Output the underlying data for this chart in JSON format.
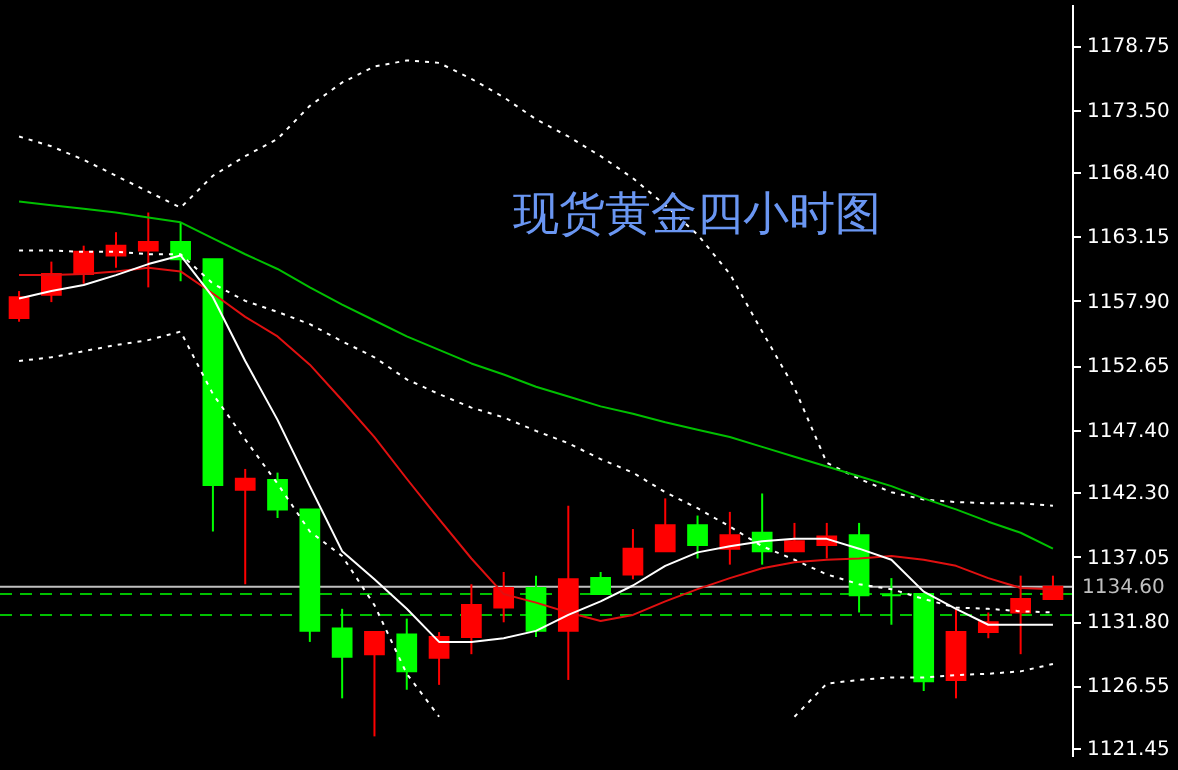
{
  "chart_data": {
    "type": "candlestick",
    "annotations": [
      "现货黄金四小时图"
    ],
    "categories": [
      null,
      null,
      null,
      null,
      null,
      null,
      null,
      null,
      null,
      null,
      null,
      null,
      null,
      null,
      null,
      null,
      null,
      null,
      null,
      null,
      null,
      null,
      null,
      null,
      null,
      null,
      null,
      null,
      null,
      null,
      null,
      null,
      null
    ],
    "ohlc": [
      [
        1156.5,
        1158.7,
        1156.2,
        1158.2
      ],
      [
        1158.4,
        1161.1,
        1157.8,
        1160.1
      ],
      [
        1160.1,
        1162.4,
        1159.3,
        1161.9
      ],
      [
        1161.6,
        1163.5,
        1160.6,
        1162.4
      ],
      [
        1162.0,
        1165.1,
        1159.0,
        1162.7
      ],
      [
        1162.7,
        1164.3,
        1159.5,
        1161.3
      ],
      [
        1161.3,
        1161.3,
        1139.1,
        1142.9
      ],
      [
        1142.5,
        1144.2,
        1134.8,
        1143.4
      ],
      [
        1143.3,
        1143.9,
        1140.2,
        1140.9
      ],
      [
        1140.9,
        1140.9,
        1130.1,
        1131.0
      ],
      [
        1131.2,
        1132.8,
        1125.5,
        1128.9
      ],
      [
        1129.1,
        1130.9,
        1122.4,
        1130.9
      ],
      [
        1130.7,
        1132.0,
        1126.2,
        1127.7
      ],
      [
        1128.8,
        1130.9,
        1126.6,
        1130.5
      ],
      [
        1130.5,
        1134.8,
        1129.1,
        1133.1
      ],
      [
        1132.9,
        1135.8,
        1131.7,
        1134.5
      ],
      [
        1134.5,
        1135.5,
        1130.5,
        1131.0
      ],
      [
        1131.0,
        1141.2,
        1127.0,
        1135.2
      ],
      [
        1135.3,
        1135.8,
        1134.0,
        1134.0
      ],
      [
        1135.6,
        1139.3,
        1135.2,
        1137.7
      ],
      [
        1137.5,
        1141.8,
        1137.5,
        1139.6
      ],
      [
        1139.6,
        1140.4,
        1136.9,
        1138.0
      ],
      [
        1137.7,
        1140.7,
        1136.4,
        1138.8
      ],
      [
        1139.0,
        1142.2,
        1136.4,
        1137.5
      ],
      [
        1137.5,
        1139.8,
        1137.5,
        1138.3
      ],
      [
        1138.0,
        1139.8,
        1136.9,
        1138.7
      ],
      [
        1138.8,
        1139.8,
        1132.5,
        1133.9
      ],
      [
        1133.9,
        1135.3,
        1131.5,
        1133.9
      ],
      [
        1134.0,
        1134.0,
        1126.1,
        1126.9
      ],
      [
        1127.0,
        1132.8,
        1125.5,
        1130.9
      ],
      [
        1130.9,
        1132.5,
        1130.4,
        1131.7
      ],
      [
        1132.5,
        1135.5,
        1129.1,
        1133.6
      ],
      [
        1133.6,
        1135.5,
        1133.6,
        1134.6
      ]
    ],
    "colors": [
      "#ff0000",
      "#ff0000",
      "#ff0000",
      "#ff0000",
      "#ff0000",
      "#00ff00",
      "#00ff00",
      "#ff0000",
      "#00ff00",
      "#00ff00",
      "#00ff00",
      "#ff0000",
      "#00ff00",
      "#ff0000",
      "#ff0000",
      "#ff0000",
      "#00ff00",
      "#ff0000",
      "#00ff00",
      "#ff0000",
      "#ff0000",
      "#00ff00",
      "#ff0000",
      "#00ff00",
      "#ff0000",
      "#ff0000",
      "#00ff00",
      "#00ff00",
      "#00ff00",
      "#ff0000",
      "#ff0000",
      "#ff0000",
      "#ff0000"
    ],
    "series": [
      {
        "type": "line",
        "color": "#ffffff",
        "line_style": "dotted",
        "values": [
          1171.3,
          1170.5,
          1169.4,
          1168.1,
          1166.8,
          1165.5,
          1168.1,
          1169.7,
          1171.1,
          1173.8,
          1175.7,
          1177.0,
          1177.5,
          1177.3,
          1176.0,
          1174.5,
          1172.7,
          1171.3,
          1169.7,
          1167.9,
          1165.7,
          1163.3,
          1160.1,
          1155.4,
          1150.8,
          1144.7,
          1143.4,
          1142.3,
          1141.7,
          1141.5,
          1141.4,
          1141.4,
          1141.2
        ]
      },
      {
        "type": "line",
        "color": "#ffffff",
        "line_style": "dotted",
        "values": [
          1162.0,
          1162.0,
          1161.9,
          1161.9,
          1161.7,
          1161.7,
          1159.3,
          1157.9,
          1157.0,
          1156.0,
          1154.6,
          1153.3,
          1151.5,
          1150.3,
          1149.2,
          1148.4,
          1147.3,
          1146.3,
          1145.0,
          1143.9,
          1142.3,
          1141.0,
          1139.5,
          1137.9,
          1136.8,
          1135.6,
          1134.8,
          1134.4,
          1133.6,
          1132.9,
          1132.8,
          1132.6,
          1132.5
        ]
      },
      {
        "type": "line",
        "color": "#ffffff",
        "line_style": "dotted",
        "values": [
          1153.0,
          1153.3,
          1153.8,
          1154.3,
          1154.7,
          1155.4,
          1150.3,
          1146.6,
          1143.0,
          1139.1,
          1137.1,
          1133.1,
          1127.5,
          1124.0,
          null,
          null,
          null,
          null,
          null,
          null,
          null,
          null,
          null,
          null,
          1124.0,
          1126.7,
          1127.0,
          1127.2,
          1127.2,
          1127.4,
          1127.5,
          1127.7,
          1128.3
        ]
      },
      {
        "type": "line",
        "color": "#00c000",
        "line_style": "solid",
        "values": [
          1166.0,
          1165.7,
          1165.4,
          1165.1,
          1164.7,
          1164.3,
          1163.0,
          1161.7,
          1160.5,
          1159.0,
          1157.6,
          1156.3,
          1155.0,
          1153.9,
          1152.8,
          1151.9,
          1150.9,
          1150.1,
          1149.3,
          1148.7,
          1148.0,
          1147.4,
          1146.8,
          1146.0,
          1145.2,
          1144.4,
          1143.6,
          1142.8,
          1141.8,
          1140.9,
          1139.9,
          1139.0,
          1137.7
        ]
      },
      {
        "type": "line",
        "color": "#e01010",
        "line_style": "solid",
        "values": [
          1160.0,
          1160.0,
          1160.1,
          1160.3,
          1160.6,
          1160.3,
          1158.5,
          1156.6,
          1155.0,
          1152.7,
          1149.8,
          1146.8,
          1143.4,
          1140.1,
          1136.9,
          1134.0,
          1133.3,
          1132.5,
          1131.8,
          1132.3,
          1133.4,
          1134.4,
          1135.3,
          1136.1,
          1136.6,
          1136.8,
          1136.9,
          1137.1,
          1136.8,
          1136.3,
          1135.3,
          1134.5,
          1134.4
        ]
      },
      {
        "type": "line",
        "color": "#ffffff",
        "line_style": "solid",
        "values": [
          1158.1,
          1158.7,
          1159.2,
          1160.0,
          1160.9,
          1161.6,
          1158.2,
          1153.0,
          1148.2,
          1142.8,
          1137.5,
          1135.2,
          1132.8,
          1130.1,
          1130.1,
          1130.4,
          1131.0,
          1132.3,
          1133.4,
          1134.7,
          1136.3,
          1137.4,
          1137.9,
          1138.3,
          1138.5,
          1138.5,
          1137.7,
          1136.8,
          1134.2,
          1132.8,
          1131.5,
          1131.5,
          1131.5
        ]
      }
    ],
    "ylim": [
      1120.8,
      1182.1
    ],
    "yticks": [
      {
        "value": 1121.45,
        "label": "1121.45"
      },
      {
        "value": 1126.55,
        "label": "1126.55"
      },
      {
        "value": 1131.8,
        "label": "1131.80"
      },
      {
        "value": 1137.05,
        "label": "1137.05"
      },
      {
        "value": 1142.3,
        "label": "1142.30"
      },
      {
        "value": 1147.4,
        "label": "1147.40"
      },
      {
        "value": 1152.65,
        "label": "1152.65"
      },
      {
        "value": 1157.9,
        "label": "1157.90"
      },
      {
        "value": 1163.15,
        "label": "1163.15"
      },
      {
        "value": 1168.4,
        "label": "1168.40"
      },
      {
        "value": 1173.5,
        "label": "1173.50"
      },
      {
        "value": 1178.75,
        "label": "1178.75"
      }
    ],
    "ref_lines": [
      {
        "axis": "y",
        "value": 1134.6,
        "label": "1134.60",
        "color": "#c0c0c0",
        "line_style": "solid"
      },
      {
        "axis": "y",
        "value": 1134.0,
        "color": "#00c000",
        "line_style": "dashed"
      },
      {
        "axis": "y",
        "value": 1132.3,
        "color": "#00c000",
        "line_style": "dashed"
      }
    ],
    "grid": false,
    "tick_labels": "y"
  }
}
